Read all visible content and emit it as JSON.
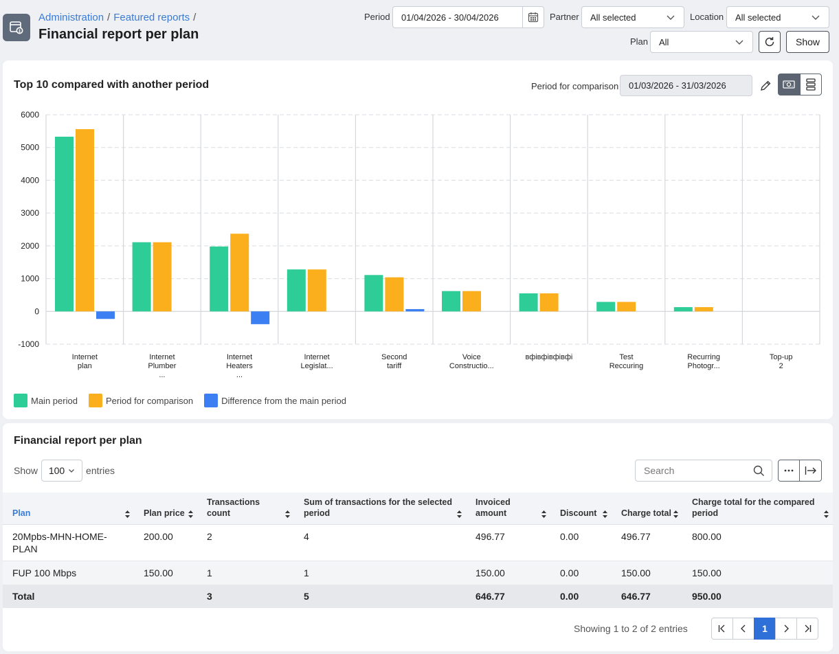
{
  "header": {
    "breadcrumbs": [
      "Administration",
      "Featured reports"
    ],
    "breadcrumb_separator": "/",
    "title": "Financial report per plan"
  },
  "filters": {
    "period_label": "Period",
    "period_value": "01/04/2026 - 30/04/2026",
    "partner_label": "Partner",
    "partner_value": "All selected",
    "location_label": "Location",
    "location_value": "All selected",
    "plan_label": "Plan",
    "plan_value": "All",
    "show_label": "Show"
  },
  "chart_card": {
    "title": "Top 10 compared with another period",
    "comparison_label": "Period for comparison",
    "comparison_value": "01/03/2026 - 31/03/2026"
  },
  "chart_data": {
    "type": "bar",
    "categories": [
      [
        "Internet",
        "plan"
      ],
      [
        "Internet",
        "Plumber",
        "..."
      ],
      [
        "Internet",
        "Heaters",
        "..."
      ],
      [
        "Internet",
        "Legislat..."
      ],
      [
        "Second",
        "tariff"
      ],
      [
        "Voice",
        "Constructio..."
      ],
      [
        "вфівфівфівфі"
      ],
      [
        "Test",
        "Reccuring"
      ],
      [
        "Recurring",
        "Photogr..."
      ],
      [
        "Top-up",
        "2"
      ]
    ],
    "series": [
      {
        "name": "Main period",
        "color": "#2ecc96",
        "values": [
          5330,
          2110,
          1980,
          1280,
          1110,
          620,
          550,
          290,
          130,
          0
        ]
      },
      {
        "name": "Period for comparison",
        "color": "#fbaf1d",
        "values": [
          5560,
          2110,
          2370,
          1280,
          1040,
          620,
          550,
          290,
          130,
          0
        ]
      },
      {
        "name": "Difference from the main period",
        "color": "#3b7ff2",
        "values": [
          -230,
          0,
          -390,
          0,
          70,
          0,
          0,
          0,
          0,
          0
        ]
      }
    ],
    "yticks": [
      "6000",
      "5000",
      "4000",
      "3000",
      "2000",
      "1000",
      "0",
      "-1000"
    ],
    "ylim": [
      -1000,
      6000
    ],
    "grid": true,
    "legend_position": "bottom-left"
  },
  "table_card": {
    "title": "Financial report per plan",
    "show_label": "Show",
    "entries_value": "100",
    "entries_label": "entries",
    "search_placeholder": "Search",
    "columns": [
      "Plan",
      "Plan price",
      "Transactions count",
      "Sum of transactions for the selected period",
      "Invoiced amount",
      "Discount",
      "Charge total",
      "Charge total for the compared period"
    ],
    "rows": [
      [
        "20Mpbs-MHN-HOME-PLAN",
        "200.00",
        "2",
        "4",
        "496.77",
        "0.00",
        "496.77",
        "800.00"
      ],
      [
        "FUP 100 Mbps",
        "150.00",
        "1",
        "1",
        "150.00",
        "0.00",
        "150.00",
        "150.00"
      ]
    ],
    "total": [
      "Total",
      "",
      "3",
      "5",
      "646.77",
      "0.00",
      "646.77",
      "950.00"
    ],
    "pagination_info": "Showing 1 to 2 of 2 entries",
    "current_page": "1"
  }
}
